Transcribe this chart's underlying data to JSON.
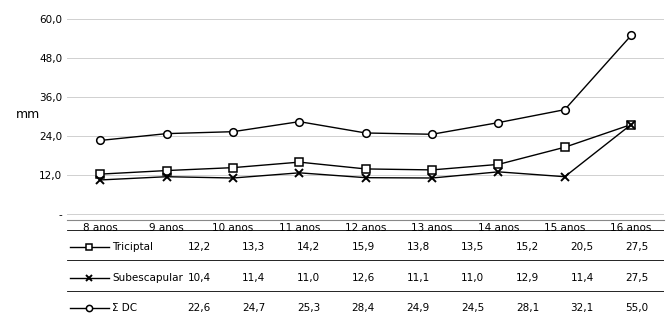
{
  "x_labels": [
    "8 anos",
    "9 anos",
    "10 anos",
    "11 anos",
    "12 anos",
    "13 anos",
    "14 anos",
    "15 anos",
    "16 anos"
  ],
  "triciptal": [
    12.2,
    13.3,
    14.2,
    15.9,
    13.8,
    13.5,
    15.2,
    20.5,
    27.5
  ],
  "subescapular": [
    10.4,
    11.4,
    11.0,
    12.6,
    11.1,
    11.0,
    12.9,
    11.4,
    27.5
  ],
  "sigma_dc": [
    22.6,
    24.7,
    25.3,
    28.4,
    24.9,
    24.5,
    28.1,
    32.1,
    55.0
  ],
  "ylabel": "mm",
  "yticks": [
    0,
    12.0,
    24.0,
    36.0,
    48.0,
    60.0
  ],
  "ytick_labels": [
    "-",
    "12,0",
    "24,0",
    "36,0",
    "48,0",
    "60,0"
  ],
  "line_color": "#000000",
  "legend_triciptal": "Triciptal",
  "legend_subescapular": "Subescapular",
  "legend_sigma": "Σ DC",
  "table_triciptal": [
    "12,2",
    "13,3",
    "14,2",
    "15,9",
    "13,8",
    "13,5",
    "15,2",
    "20,5",
    "27,5"
  ],
  "table_subescapular": [
    "10,4",
    "11,4",
    "11,0",
    "12,6",
    "11,1",
    "11,0",
    "12,9",
    "11,4",
    "27,5"
  ],
  "table_sigma": [
    "22,6",
    "24,7",
    "25,3",
    "28,4",
    "24,9",
    "24,5",
    "28,1",
    "32,1",
    "55,0"
  ],
  "background_color": "#ffffff",
  "ylim": [
    -2,
    63
  ],
  "font_size": 7.5
}
